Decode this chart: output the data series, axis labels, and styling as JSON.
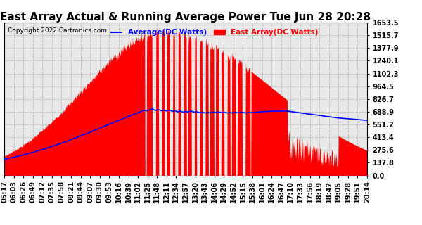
{
  "title": "East Array Actual & Running Average Power Tue Jun 28 20:28",
  "copyright": "Copyright 2022 Cartronics.com",
  "legend_labels": [
    "Average(DC Watts)",
    "East Array(DC Watts)"
  ],
  "legend_colors": [
    "blue",
    "red"
  ],
  "ylabel_ticks": [
    0.0,
    137.8,
    275.6,
    413.4,
    551.2,
    688.9,
    826.7,
    964.5,
    1102.3,
    1240.1,
    1377.9,
    1515.7,
    1653.5
  ],
  "ymax": 1653.5,
  "ymin": 0.0,
  "background_color": "#ffffff",
  "plot_bg_color": "#e8e8e8",
  "grid_color": "#bbbbbb",
  "title_fontsize": 11,
  "tick_fontsize": 7,
  "x_tick_labels": [
    "05:17",
    "06:03",
    "06:26",
    "06:49",
    "07:12",
    "07:35",
    "07:58",
    "08:21",
    "08:44",
    "09:07",
    "09:30",
    "09:53",
    "10:16",
    "10:39",
    "11:02",
    "11:25",
    "11:48",
    "12:11",
    "12:34",
    "12:57",
    "13:20",
    "13:43",
    "14:06",
    "14:29",
    "14:52",
    "15:15",
    "15:38",
    "16:01",
    "16:24",
    "16:47",
    "17:10",
    "17:33",
    "17:56",
    "18:19",
    "18:42",
    "19:05",
    "19:28",
    "19:51",
    "20:14"
  ]
}
